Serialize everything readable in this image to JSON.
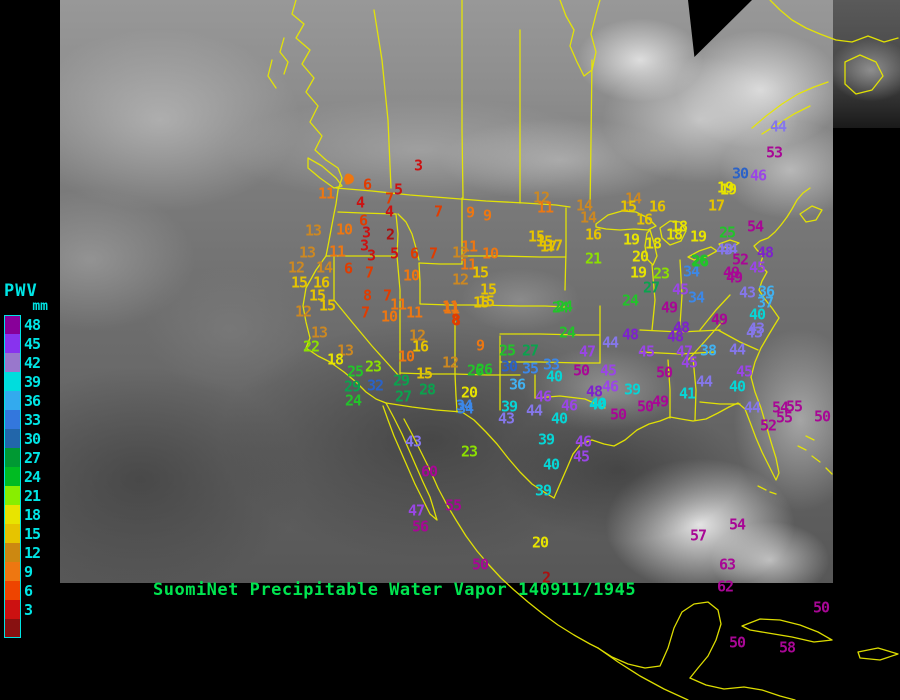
{
  "caption": "SuomiNet Precipitable Water Vapor 140911/1945",
  "colors": {
    "background": "#000000",
    "map_line": "#e8e800",
    "caption_text": "#00e550",
    "legend_text": "#00e5e5"
  },
  "legend": {
    "title": "PWV",
    "unit": "mm",
    "entries": [
      {
        "label": "48",
        "color": "#880099"
      },
      {
        "label": "45",
        "color": "#8833ee"
      },
      {
        "label": "42",
        "color": "#9977cc"
      },
      {
        "label": "39",
        "color": "#00dddd"
      },
      {
        "label": "36",
        "color": "#33aaee"
      },
      {
        "label": "33",
        "color": "#3377dd"
      },
      {
        "label": "30",
        "color": "#2266aa"
      },
      {
        "label": "27",
        "color": "#009933"
      },
      {
        "label": "24",
        "color": "#00bb22"
      },
      {
        "label": "21",
        "color": "#88ee00"
      },
      {
        "label": "18",
        "color": "#e8e400"
      },
      {
        "label": "15",
        "color": "#e6c400"
      },
      {
        "label": "12",
        "color": "#cc8811"
      },
      {
        "label": "9",
        "color": "#ee7711"
      },
      {
        "label": "6",
        "color": "#ee4400"
      },
      {
        "label": "3",
        "color": "#cc1111"
      },
      {
        "label": "",
        "color": "#881111"
      }
    ]
  },
  "color_bins": [
    {
      "min": 0,
      "max": 2,
      "color": "#aa1111"
    },
    {
      "min": 3,
      "max": 5,
      "color": "#cc1111"
    },
    {
      "min": 6,
      "max": 8,
      "color": "#e03c00"
    },
    {
      "min": 9,
      "max": 11,
      "color": "#ee7711"
    },
    {
      "min": 12,
      "max": 14,
      "color": "#cc8822"
    },
    {
      "min": 15,
      "max": 17,
      "color": "#e6c400"
    },
    {
      "min": 18,
      "max": 20,
      "color": "#e8e400"
    },
    {
      "min": 21,
      "max": 23,
      "color": "#8ce000"
    },
    {
      "min": 24,
      "max": 26,
      "color": "#22c42a"
    },
    {
      "min": 27,
      "max": 29,
      "color": "#0aa34e"
    },
    {
      "min": 30,
      "max": 32,
      "color": "#2a62c8"
    },
    {
      "min": 33,
      "max": 35,
      "color": "#3c88e8"
    },
    {
      "min": 36,
      "max": 38,
      "color": "#41b1f0"
    },
    {
      "min": 39,
      "max": 41,
      "color": "#06d6d6"
    },
    {
      "min": 42,
      "max": 44,
      "color": "#8577ea"
    },
    {
      "min": 45,
      "max": 47,
      "color": "#9a46e6"
    },
    {
      "min": 48,
      "max": 48,
      "color": "#7d22cc"
    },
    {
      "min": 49,
      "max": 99,
      "color": "#a80795"
    }
  ],
  "stations": [
    [
      3,
      418,
      166
    ],
    [
      9,
      348,
      180
    ],
    [
      6,
      367,
      185
    ],
    [
      5,
      398,
      190
    ],
    [
      11,
      326,
      194
    ],
    [
      4,
      360,
      203
    ],
    [
      7,
      389,
      199
    ],
    [
      4,
      389,
      212
    ],
    [
      7,
      438,
      212
    ],
    [
      9,
      470,
      213
    ],
    [
      9,
      487,
      216
    ],
    [
      6,
      363,
      221
    ],
    [
      13,
      313,
      231
    ],
    [
      10,
      344,
      230
    ],
    [
      3,
      366,
      233
    ],
    [
      2,
      390,
      235
    ],
    [
      3,
      364,
      246
    ],
    [
      13,
      307,
      253
    ],
    [
      11,
      337,
      252
    ],
    [
      3,
      371,
      256
    ],
    [
      5,
      394,
      254
    ],
    [
      6,
      414,
      254
    ],
    [
      7,
      433,
      254
    ],
    [
      11,
      469,
      247
    ],
    [
      12,
      460,
      253
    ],
    [
      10,
      490,
      254
    ],
    [
      12,
      296,
      268
    ],
    [
      14,
      324,
      268
    ],
    [
      6,
      348,
      269
    ],
    [
      7,
      369,
      273
    ],
    [
      10,
      411,
      276
    ],
    [
      11,
      468,
      265
    ],
    [
      12,
      460,
      280
    ],
    [
      15,
      480,
      273
    ],
    [
      15,
      299,
      283
    ],
    [
      16,
      321,
      283
    ],
    [
      15,
      488,
      290
    ],
    [
      15,
      486,
      302
    ],
    [
      11,
      450,
      307
    ],
    [
      8,
      455,
      320
    ],
    [
      8,
      367,
      296
    ],
    [
      7,
      387,
      296
    ],
    [
      15,
      317,
      296
    ],
    [
      12,
      303,
      312
    ],
    [
      15,
      327,
      306
    ],
    [
      7,
      365,
      313
    ],
    [
      11,
      398,
      305
    ],
    [
      10,
      389,
      317
    ],
    [
      11,
      414,
      313
    ],
    [
      11,
      451,
      309
    ],
    [
      15,
      481,
      303
    ],
    [
      8,
      456,
      321
    ],
    [
      13,
      319,
      333
    ],
    [
      12,
      417,
      336
    ],
    [
      22,
      311,
      347
    ],
    [
      16,
      420,
      347
    ],
    [
      13,
      345,
      351
    ],
    [
      10,
      406,
      357
    ],
    [
      18,
      335,
      360
    ],
    [
      12,
      450,
      363
    ],
    [
      23,
      373,
      367
    ],
    [
      25,
      355,
      372
    ],
    [
      15,
      424,
      374
    ],
    [
      26,
      475,
      371
    ],
    [
      29,
      401,
      381
    ],
    [
      29,
      352,
      387
    ],
    [
      32,
      375,
      386
    ],
    [
      28,
      427,
      390
    ],
    [
      27,
      403,
      397
    ],
    [
      20,
      469,
      393
    ],
    [
      24,
      353,
      401
    ],
    [
      34,
      464,
      406
    ],
    [
      9,
      480,
      346
    ],
    [
      25,
      507,
      351
    ],
    [
      27,
      530,
      351
    ],
    [
      26,
      484,
      370
    ],
    [
      30,
      509,
      367
    ],
    [
      35,
      530,
      369
    ],
    [
      33,
      551,
      365
    ],
    [
      40,
      554,
      377
    ],
    [
      36,
      517,
      385
    ],
    [
      46,
      543,
      397
    ],
    [
      34,
      465,
      409
    ],
    [
      39,
      509,
      407
    ],
    [
      44,
      534,
      411
    ],
    [
      43,
      506,
      419
    ],
    [
      46,
      569,
      406
    ],
    [
      40,
      597,
      405
    ],
    [
      40,
      559,
      419
    ],
    [
      23,
      469,
      452
    ],
    [
      39,
      546,
      440
    ],
    [
      46,
      583,
      442
    ],
    [
      45,
      581,
      457
    ],
    [
      40,
      551,
      465
    ],
    [
      39,
      543,
      491
    ],
    [
      24,
      567,
      333
    ],
    [
      24,
      564,
      307
    ],
    [
      24,
      630,
      301
    ],
    [
      21,
      593,
      259
    ],
    [
      17,
      554,
      246
    ],
    [
      15,
      544,
      242
    ],
    [
      12,
      541,
      198
    ],
    [
      11,
      545,
      208
    ],
    [
      14,
      584,
      206
    ],
    [
      14,
      588,
      218
    ],
    [
      14,
      633,
      199
    ],
    [
      15,
      628,
      207
    ],
    [
      16,
      657,
      207
    ],
    [
      16,
      644,
      220
    ],
    [
      19,
      725,
      188
    ],
    [
      17,
      716,
      206
    ],
    [
      15,
      536,
      237
    ],
    [
      17,
      548,
      247
    ],
    [
      16,
      593,
      235
    ],
    [
      19,
      631,
      240
    ],
    [
      18,
      653,
      244
    ],
    [
      18,
      674,
      235
    ],
    [
      18,
      679,
      227
    ],
    [
      19,
      698,
      237
    ],
    [
      25,
      727,
      233
    ],
    [
      20,
      640,
      257
    ],
    [
      26,
      699,
      261
    ],
    [
      34,
      691,
      272
    ],
    [
      19,
      638,
      273
    ],
    [
      23,
      661,
      274
    ],
    [
      27,
      651,
      288
    ],
    [
      45,
      680,
      290
    ],
    [
      34,
      696,
      298
    ],
    [
      49,
      669,
      308
    ],
    [
      49,
      731,
      273
    ],
    [
      44,
      729,
      250
    ],
    [
      24,
      560,
      308
    ],
    [
      49,
      719,
      320
    ],
    [
      48,
      681,
      328
    ],
    [
      44,
      778,
      127
    ],
    [
      53,
      774,
      153
    ],
    [
      30,
      740,
      174
    ],
    [
      46,
      758,
      176
    ],
    [
      19,
      728,
      190
    ],
    [
      54,
      755,
      227
    ],
    [
      43,
      724,
      250
    ],
    [
      26,
      700,
      262
    ],
    [
      52,
      740,
      260
    ],
    [
      48,
      765,
      253
    ],
    [
      45,
      757,
      268
    ],
    [
      49,
      734,
      278
    ],
    [
      43,
      747,
      293
    ],
    [
      36,
      766,
      292
    ],
    [
      37,
      765,
      303
    ],
    [
      40,
      757,
      315
    ],
    [
      43,
      756,
      329
    ],
    [
      48,
      630,
      335
    ],
    [
      44,
      610,
      343
    ],
    [
      47,
      587,
      352
    ],
    [
      45,
      646,
      352
    ],
    [
      48,
      675,
      337
    ],
    [
      47,
      684,
      352
    ],
    [
      38,
      708,
      351
    ],
    [
      44,
      737,
      350
    ],
    [
      43,
      754,
      333
    ],
    [
      45,
      689,
      363
    ],
    [
      50,
      664,
      373
    ],
    [
      45,
      608,
      371
    ],
    [
      50,
      581,
      371
    ],
    [
      46,
      610,
      387
    ],
    [
      48,
      594,
      392
    ],
    [
      39,
      632,
      390
    ],
    [
      45,
      744,
      372
    ],
    [
      44,
      704,
      382
    ],
    [
      40,
      737,
      387
    ],
    [
      41,
      687,
      394
    ],
    [
      40,
      598,
      404
    ],
    [
      50,
      645,
      407
    ],
    [
      49,
      660,
      402
    ],
    [
      50,
      618,
      415
    ],
    [
      44,
      752,
      408
    ],
    [
      54,
      780,
      408
    ],
    [
      55,
      794,
      407
    ],
    [
      52,
      768,
      426
    ],
    [
      55,
      784,
      418
    ],
    [
      50,
      822,
      417
    ],
    [
      43,
      413,
      442
    ],
    [
      60,
      429,
      472
    ],
    [
      55,
      453,
      506
    ],
    [
      47,
      416,
      511
    ],
    [
      56,
      420,
      527
    ],
    [
      20,
      540,
      543
    ],
    [
      50,
      480,
      565
    ],
    [
      2,
      546,
      578
    ],
    [
      54,
      737,
      525
    ],
    [
      57,
      698,
      536
    ],
    [
      63,
      727,
      565
    ],
    [
      62,
      725,
      587
    ],
    [
      50,
      821,
      608
    ],
    [
      50,
      737,
      643
    ],
    [
      58,
      787,
      648
    ]
  ]
}
